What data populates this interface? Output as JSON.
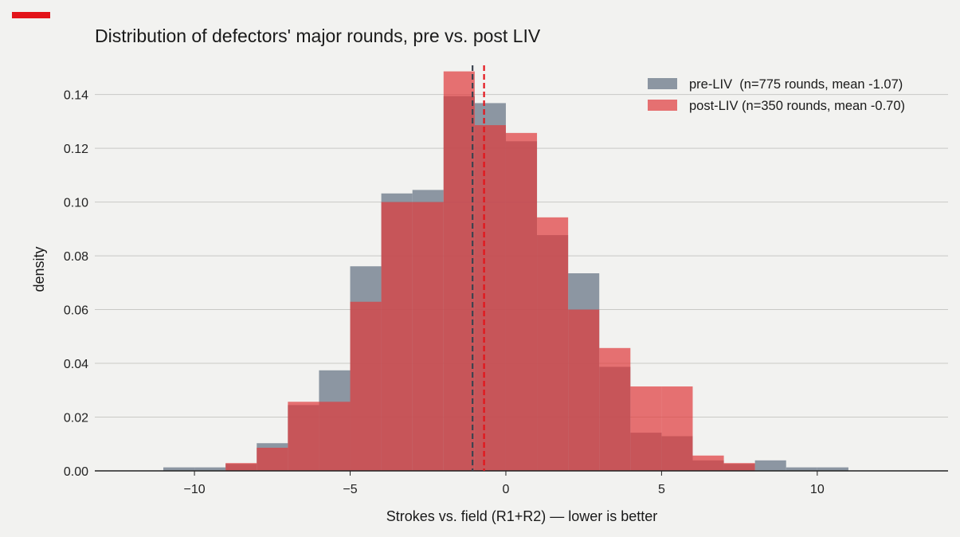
{
  "chart_data": {
    "type": "bar",
    "title": "Distribution of defectors' major rounds, pre vs. post LIV",
    "xlabel": "Strokes vs. field (R1+R2)  —  lower is better",
    "ylabel": "density",
    "xlim": [
      -13.2,
      14.2
    ],
    "ylim": [
      0,
      0.155
    ],
    "x_ticks": [
      -10,
      -5,
      0,
      5,
      10
    ],
    "x_tick_labels": [
      "−10",
      "−5",
      "0",
      "5",
      "10"
    ],
    "y_ticks": [
      0,
      0.02,
      0.04,
      0.06,
      0.08,
      0.1,
      0.12,
      0.14
    ],
    "y_tick_labels": [
      "0.00",
      "0.02",
      "0.04",
      "0.06",
      "0.08",
      "0.10",
      "0.12",
      "0.14"
    ],
    "grid": "horizontal",
    "legend_position": "top-right",
    "bin_width": 1,
    "bin_edges": [
      -11,
      -10,
      -9,
      -8,
      -7,
      -6,
      -5,
      -4,
      -3,
      -2,
      -1,
      0,
      1,
      2,
      3,
      4,
      5,
      6,
      7,
      8,
      9,
      10,
      11
    ],
    "series": [
      {
        "name": "pre-LIV  (n=775 rounds, mean -1.07)",
        "color": "#7a8694",
        "values": [
          0.0013,
          0.0013,
          0.0026,
          0.0103,
          0.0245,
          0.0374,
          0.0761,
          0.1032,
          0.1045,
          0.1394,
          0.1368,
          0.1226,
          0.0877,
          0.0735,
          0.0387,
          0.0142,
          0.0129,
          0.0039,
          0.0026,
          0.0039,
          0.0013,
          0.0013
        ],
        "mean": -1.07
      },
      {
        "name": "post-LIV (n=350 rounds, mean -0.70)",
        "color": "#e0393a",
        "values": [
          0,
          0,
          0.0029,
          0.0086,
          0.0257,
          0.0257,
          0.0629,
          0.1,
          0.1,
          0.1486,
          0.1286,
          0.1257,
          0.0943,
          0.06,
          0.0457,
          0.0314,
          0.0314,
          0.0057,
          0.0029,
          0,
          0,
          0
        ],
        "mean": -0.7
      }
    ],
    "mean_lines": [
      {
        "x": -1.07,
        "color": "#3d4450",
        "style": "dashed"
      },
      {
        "x": -0.7,
        "color": "#e3141a",
        "style": "dashed"
      }
    ],
    "accent_color": "#e3141a"
  }
}
